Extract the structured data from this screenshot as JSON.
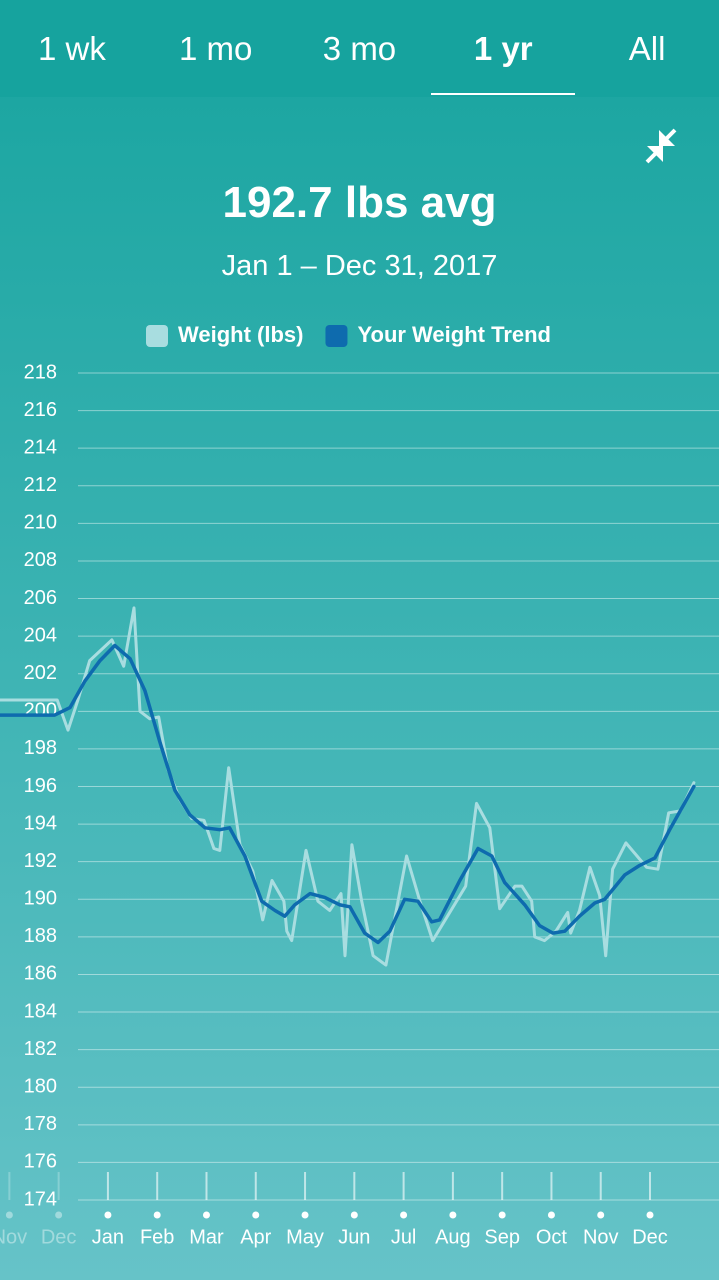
{
  "tabs": [
    "1 wk",
    "1 mo",
    "3 mo",
    "1 yr",
    "All"
  ],
  "selected_tab": "1 yr",
  "summary": {
    "average": "192.7 lbs avg",
    "range": "Jan 1 – Dec 31, 2017"
  },
  "chart_data": {
    "type": "line",
    "xlim": [
      -2.19,
      12.4
    ],
    "xticks": [
      {
        "value": -2,
        "label": "Nov"
      },
      {
        "value": -1,
        "label": "Dec"
      },
      {
        "value": 0,
        "label": "Jan"
      },
      {
        "value": 1,
        "label": "Feb"
      },
      {
        "value": 2,
        "label": "Mar"
      },
      {
        "value": 3,
        "label": "Apr"
      },
      {
        "value": 4,
        "label": "May"
      },
      {
        "value": 5,
        "label": "Jun"
      },
      {
        "value": 6,
        "label": "Jul"
      },
      {
        "value": 7,
        "label": "Aug"
      },
      {
        "value": 8,
        "label": "Sep"
      },
      {
        "value": 9,
        "label": "Oct"
      },
      {
        "value": 10,
        "label": "Nov"
      },
      {
        "value": 11,
        "label": "Dec"
      }
    ],
    "ylim": [
      174,
      218
    ],
    "yticks": [
      174,
      176,
      178,
      180,
      182,
      184,
      186,
      188,
      190,
      192,
      194,
      196,
      198,
      200,
      202,
      204,
      206,
      208,
      210,
      212,
      214,
      216,
      218
    ],
    "grid": true,
    "series": [
      {
        "name": "Weight (lbs)",
        "color": "#a8dde0",
        "x": [
          -2.19,
          -1.03,
          -0.81,
          -0.61,
          -0.37,
          0.08,
          0.32,
          0.53,
          0.65,
          0.85,
          1.03,
          1.22,
          1.46,
          1.7,
          1.95,
          2.15,
          2.27,
          2.45,
          2.68,
          2.94,
          3.14,
          3.33,
          3.57,
          3.63,
          3.73,
          4.02,
          4.26,
          4.5,
          4.73,
          4.81,
          4.95,
          5.15,
          5.38,
          5.64,
          6.06,
          6.33,
          6.59,
          7.26,
          7.48,
          7.75,
          7.95,
          8.26,
          8.4,
          8.6,
          8.66,
          8.86,
          9.09,
          9.33,
          9.39,
          9.57,
          9.78,
          9.98,
          10.1,
          10.24,
          10.51,
          10.93,
          11.16,
          11.38,
          11.62,
          11.89
        ],
        "values": [
          200.6,
          200.6,
          199.0,
          200.6,
          202.7,
          203.8,
          202.4,
          205.5,
          200.0,
          199.6,
          199.7,
          196.9,
          195.3,
          194.3,
          194.2,
          192.7,
          192.6,
          197.0,
          192.9,
          191.5,
          188.9,
          191.0,
          189.9,
          188.3,
          187.8,
          192.6,
          189.9,
          189.4,
          190.3,
          187.0,
          192.9,
          189.9,
          187.0,
          186.5,
          192.3,
          189.9,
          187.8,
          190.7,
          195.1,
          193.8,
          189.5,
          190.7,
          190.7,
          189.9,
          188.0,
          187.8,
          188.3,
          189.3,
          188.2,
          189.4,
          191.7,
          190.2,
          187.0,
          191.6,
          193.0,
          191.7,
          191.6,
          194.6,
          194.7,
          196.2
        ]
      },
      {
        "name": "Your Weight Trend",
        "color": "#0e6bae",
        "x": [
          -2.19,
          -1.08,
          -0.77,
          -0.47,
          -0.16,
          0.14,
          0.45,
          0.75,
          1.05,
          1.36,
          1.66,
          1.97,
          2.27,
          2.47,
          2.78,
          3.12,
          3.39,
          3.59,
          3.79,
          4.1,
          4.4,
          4.71,
          4.91,
          5.21,
          5.48,
          5.72,
          6.02,
          6.29,
          6.57,
          6.73,
          7.14,
          7.51,
          7.79,
          8.05,
          8.46,
          8.76,
          9.03,
          9.27,
          9.57,
          9.88,
          10.08,
          10.49,
          10.79,
          11.1,
          11.4,
          11.89
        ],
        "values": [
          199.8,
          199.8,
          200.2,
          201.6,
          202.7,
          203.5,
          202.8,
          201.1,
          198.4,
          195.8,
          194.5,
          193.8,
          193.7,
          193.8,
          192.3,
          189.9,
          189.4,
          189.1,
          189.7,
          190.3,
          190.1,
          189.7,
          189.6,
          188.2,
          187.7,
          188.3,
          190.0,
          189.9,
          188.8,
          188.9,
          191.0,
          192.7,
          192.3,
          190.9,
          189.7,
          188.6,
          188.2,
          188.3,
          189.1,
          189.8,
          190.0,
          191.3,
          191.8,
          192.2,
          193.7,
          196.0
        ]
      }
    ]
  }
}
